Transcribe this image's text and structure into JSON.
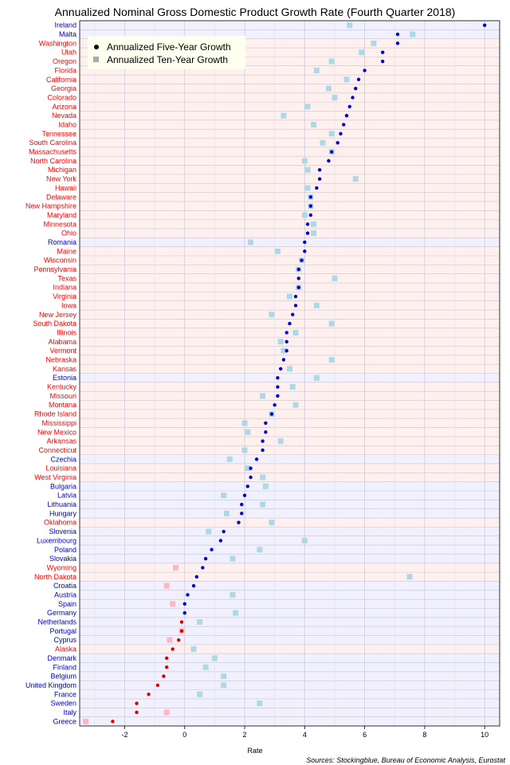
{
  "chart_data": {
    "type": "scatter",
    "title": "Annualized Nominal Gross Domestic Product Growth Rate (Fourth Quarter 2018)",
    "xlabel": "Rate",
    "source": "Sources: Stockingblue, Bureau of Economic Analysis, Eurostat",
    "xlim": [
      -3.5,
      10.5
    ],
    "xticks": [
      -2,
      0,
      2,
      4,
      6,
      8,
      10
    ],
    "grid": true,
    "legend_position": "top-left",
    "series": [
      {
        "name": "Annualized Five-Year Growth",
        "key": "five"
      },
      {
        "name": "Annualized Ten-Year Growth",
        "key": "ten"
      }
    ],
    "colors": {
      "us_label": "#ff0000",
      "eu_label": "#0000cd",
      "us_band": "#fff0f0",
      "eu_band": "#f0f0ff",
      "five_positive": "#0000cd",
      "five_negative": "#dd0000",
      "ten_positive": "#add8e6",
      "ten_negative": "#ffb6c1",
      "legend_bg": "#fffff0",
      "legend_five": "#000000",
      "legend_ten": "#aaaaaa"
    },
    "rows": [
      {
        "label": "Ireland",
        "group": "eu",
        "five": 10.0,
        "ten": 5.5
      },
      {
        "label": "Malta",
        "group": "eu",
        "five": 7.1,
        "ten": 7.6
      },
      {
        "label": "Washington",
        "group": "us",
        "five": 7.1,
        "ten": 6.3
      },
      {
        "label": "Utah",
        "group": "us",
        "five": 6.6,
        "ten": 5.9
      },
      {
        "label": "Oregon",
        "group": "us",
        "five": 6.6,
        "ten": 4.9
      },
      {
        "label": "Florida",
        "group": "us",
        "five": 6.0,
        "ten": 4.4
      },
      {
        "label": "California",
        "group": "us",
        "five": 5.8,
        "ten": 5.4
      },
      {
        "label": "Georgia",
        "group": "us",
        "five": 5.7,
        "ten": 4.8
      },
      {
        "label": "Colorado",
        "group": "us",
        "five": 5.6,
        "ten": 5.0
      },
      {
        "label": "Arizona",
        "group": "us",
        "five": 5.5,
        "ten": 4.1
      },
      {
        "label": "Nevada",
        "group": "us",
        "five": 5.4,
        "ten": 3.3
      },
      {
        "label": "Idaho",
        "group": "us",
        "five": 5.3,
        "ten": 4.3
      },
      {
        "label": "Tennessee",
        "group": "us",
        "five": 5.2,
        "ten": 4.9
      },
      {
        "label": "South Carolina",
        "group": "us",
        "five": 5.1,
        "ten": 4.6
      },
      {
        "label": "Massachusetts",
        "group": "us",
        "five": 4.9,
        "ten": 4.9
      },
      {
        "label": "North Carolina",
        "group": "us",
        "five": 4.8,
        "ten": 4.0
      },
      {
        "label": "Michigan",
        "group": "us",
        "five": 4.5,
        "ten": 4.1
      },
      {
        "label": "New York",
        "group": "us",
        "five": 4.5,
        "ten": 5.7
      },
      {
        "label": "Hawaii",
        "group": "us",
        "five": 4.4,
        "ten": 4.1
      },
      {
        "label": "Delaware",
        "group": "us",
        "five": 4.2,
        "ten": 4.2
      },
      {
        "label": "New Hampshire",
        "group": "us",
        "five": 4.2,
        "ten": 4.2
      },
      {
        "label": "Maryland",
        "group": "us",
        "five": 4.2,
        "ten": 4.0
      },
      {
        "label": "Minnesota",
        "group": "us",
        "five": 4.1,
        "ten": 4.3
      },
      {
        "label": "Ohio",
        "group": "us",
        "five": 4.1,
        "ten": 4.3
      },
      {
        "label": "Romania",
        "group": "eu",
        "five": 4.0,
        "ten": 2.2
      },
      {
        "label": "Maine",
        "group": "us",
        "five": 4.0,
        "ten": 3.1
      },
      {
        "label": "Wisconsin",
        "group": "us",
        "five": 3.9,
        "ten": 3.9
      },
      {
        "label": "Pennsylvania",
        "group": "us",
        "five": 3.8,
        "ten": 3.8
      },
      {
        "label": "Texas",
        "group": "us",
        "five": 3.8,
        "ten": 5.0
      },
      {
        "label": "Indiana",
        "group": "us",
        "five": 3.8,
        "ten": 3.8
      },
      {
        "label": "Virginia",
        "group": "us",
        "five": 3.7,
        "ten": 3.5
      },
      {
        "label": "Iowa",
        "group": "us",
        "five": 3.7,
        "ten": 4.4
      },
      {
        "label": "New Jersey",
        "group": "us",
        "five": 3.6,
        "ten": 2.9
      },
      {
        "label": "South Dakota",
        "group": "us",
        "five": 3.5,
        "ten": 4.9
      },
      {
        "label": "Illinois",
        "group": "us",
        "five": 3.4,
        "ten": 3.7
      },
      {
        "label": "Alabama",
        "group": "us",
        "five": 3.4,
        "ten": 3.2
      },
      {
        "label": "Vermont",
        "group": "us",
        "five": 3.4,
        "ten": 3.3
      },
      {
        "label": "Nebraska",
        "group": "us",
        "five": 3.3,
        "ten": 4.9
      },
      {
        "label": "Kansas",
        "group": "us",
        "five": 3.2,
        "ten": 3.5
      },
      {
        "label": "Estonia",
        "group": "eu",
        "five": 3.1,
        "ten": 4.4
      },
      {
        "label": "Kentucky",
        "group": "us",
        "five": 3.1,
        "ten": 3.6
      },
      {
        "label": "Missouri",
        "group": "us",
        "five": 3.1,
        "ten": 2.6
      },
      {
        "label": "Montana",
        "group": "us",
        "five": 3.0,
        "ten": 3.7
      },
      {
        "label": "Rhode Island",
        "group": "us",
        "five": 2.9,
        "ten": 2.9
      },
      {
        "label": "Mississippi",
        "group": "us",
        "five": 2.7,
        "ten": 2.0
      },
      {
        "label": "New Mexico",
        "group": "us",
        "five": 2.7,
        "ten": 2.1
      },
      {
        "label": "Arkansas",
        "group": "us",
        "five": 2.6,
        "ten": 3.2
      },
      {
        "label": "Connecticut",
        "group": "us",
        "five": 2.6,
        "ten": 2.0
      },
      {
        "label": "Czechia",
        "group": "eu",
        "five": 2.4,
        "ten": 1.5
      },
      {
        "label": "Louisiana",
        "group": "us",
        "five": 2.2,
        "ten": 2.1
      },
      {
        "label": "West Virginia",
        "group": "us",
        "five": 2.2,
        "ten": 2.6
      },
      {
        "label": "Bulgaria",
        "group": "eu",
        "five": 2.1,
        "ten": 2.7
      },
      {
        "label": "Latvia",
        "group": "eu",
        "five": 2.0,
        "ten": 1.3
      },
      {
        "label": "Lithuania",
        "group": "eu",
        "five": 1.9,
        "ten": 2.6
      },
      {
        "label": "Hungary",
        "group": "eu",
        "five": 1.9,
        "ten": 1.4
      },
      {
        "label": "Oklahoma",
        "group": "us",
        "five": 1.8,
        "ten": 2.9
      },
      {
        "label": "Slovenia",
        "group": "eu",
        "five": 1.3,
        "ten": 0.8
      },
      {
        "label": "Luxembourg",
        "group": "eu",
        "five": 1.2,
        "ten": 4.0
      },
      {
        "label": "Poland",
        "group": "eu",
        "five": 0.9,
        "ten": 2.5
      },
      {
        "label": "Slovakia",
        "group": "eu",
        "five": 0.7,
        "ten": 1.6
      },
      {
        "label": "Wyoming",
        "group": "us",
        "five": 0.6,
        "ten": -0.3
      },
      {
        "label": "North Dakota",
        "group": "us",
        "five": 0.4,
        "ten": 7.5
      },
      {
        "label": "Croatia",
        "group": "eu",
        "five": 0.3,
        "ten": -0.6
      },
      {
        "label": "Austria",
        "group": "eu",
        "five": 0.1,
        "ten": 1.6
      },
      {
        "label": "Spain",
        "group": "eu",
        "five": 0.0,
        "ten": -0.4
      },
      {
        "label": "Germany",
        "group": "eu",
        "five": 0.0,
        "ten": 1.7
      },
      {
        "label": "Netherlands",
        "group": "eu",
        "five": -0.1,
        "ten": 0.5
      },
      {
        "label": "Portugal",
        "group": "eu",
        "five": -0.1,
        "ten": -0.1
      },
      {
        "label": "Cyprus",
        "group": "eu",
        "five": -0.2,
        "ten": -0.5
      },
      {
        "label": "Alaska",
        "group": "us",
        "five": -0.4,
        "ten": 0.3
      },
      {
        "label": "Denmark",
        "group": "eu",
        "five": -0.6,
        "ten": 1.0
      },
      {
        "label": "Finland",
        "group": "eu",
        "five": -0.6,
        "ten": 0.7
      },
      {
        "label": "Belgium",
        "group": "eu",
        "five": -0.7,
        "ten": 1.3
      },
      {
        "label": "United Kingdom",
        "group": "eu",
        "five": -0.9,
        "ten": 1.3
      },
      {
        "label": "France",
        "group": "eu",
        "five": -1.2,
        "ten": 0.5
      },
      {
        "label": "Sweden",
        "group": "eu",
        "five": -1.6,
        "ten": 2.5
      },
      {
        "label": "Italy",
        "group": "eu",
        "five": -1.6,
        "ten": -0.6
      },
      {
        "label": "Greece",
        "group": "eu",
        "five": -2.4,
        "ten": -3.3
      }
    ]
  }
}
